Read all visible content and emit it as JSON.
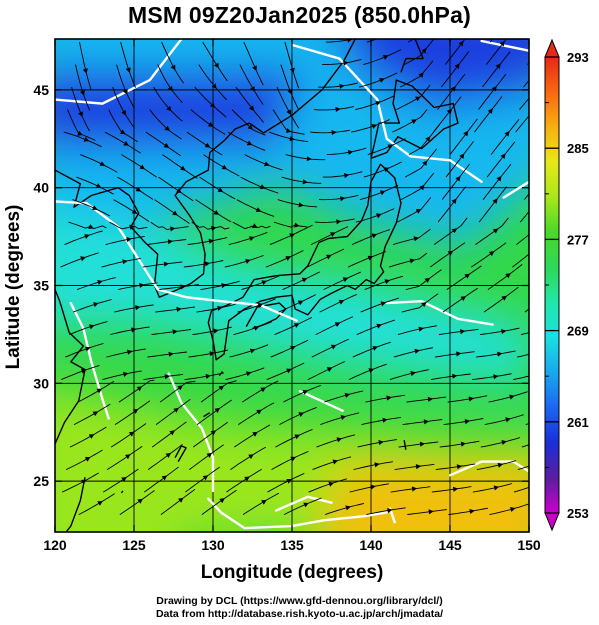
{
  "title": "MSM 09Z20Jan2025 (850.0hPa)",
  "x_axis": {
    "label": "Longitude (degrees)",
    "ticks": [
      {
        "value": 120,
        "label": "120"
      },
      {
        "value": 125,
        "label": "125"
      },
      {
        "value": 130,
        "label": "130"
      },
      {
        "value": 135,
        "label": "135"
      },
      {
        "value": 140,
        "label": "140"
      },
      {
        "value": 145,
        "label": "145"
      },
      {
        "value": 150,
        "label": "150"
      }
    ],
    "range": [
      120,
      150
    ]
  },
  "y_axis": {
    "label": "Latitude  (degrees)",
    "ticks": [
      {
        "value": 25,
        "label": "25"
      },
      {
        "value": 30,
        "label": "30"
      },
      {
        "value": 35,
        "label": "35"
      },
      {
        "value": 40,
        "label": "40"
      },
      {
        "value": 45,
        "label": "45"
      }
    ],
    "range": [
      22.4,
      47.6
    ]
  },
  "colorbar": {
    "ticks": [
      {
        "value": 253,
        "label": "253"
      },
      {
        "value": 261,
        "label": "261"
      },
      {
        "value": 269,
        "label": "269"
      },
      {
        "value": 277,
        "label": "277"
      },
      {
        "value": 285,
        "label": "285"
      },
      {
        "value": 293,
        "label": "293"
      }
    ],
    "range": [
      253,
      293
    ],
    "colors": [
      "#cc00cc",
      "#5a1ea0",
      "#1a2fd8",
      "#1b66f0",
      "#18a8f0",
      "#1adfe0",
      "#20e8a8",
      "#2ed85a",
      "#48d828",
      "#a8e818",
      "#e8e818",
      "#f8b010",
      "#f86810",
      "#e82818"
    ]
  },
  "map_colors": {
    "cold": "#1a3fe0",
    "cool": "#19b8f0",
    "cyan": "#22e0d8",
    "green": "#34d848",
    "lime": "#9ae61c",
    "warm": "#f0c010",
    "isotherm": "#ffffff",
    "coast": "#000000",
    "streamline": "#000000"
  },
  "credits": {
    "line1": "Drawing by DCL (https://www.gfd-dennou.org/library/dcl/)",
    "line2": "Data from http://database.rish.kyoto-u.ac.jp/arch/jmadata/"
  }
}
